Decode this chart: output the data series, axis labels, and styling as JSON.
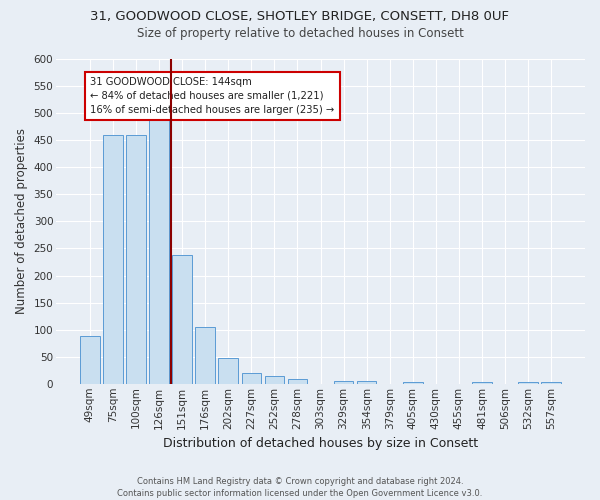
{
  "title_line1": "31, GOODWOOD CLOSE, SHOTLEY BRIDGE, CONSETT, DH8 0UF",
  "title_line2": "Size of property relative to detached houses in Consett",
  "xlabel": "Distribution of detached houses by size in Consett",
  "ylabel": "Number of detached properties",
  "bar_labels": [
    "49sqm",
    "75sqm",
    "100sqm",
    "126sqm",
    "151sqm",
    "176sqm",
    "202sqm",
    "227sqm",
    "252sqm",
    "278sqm",
    "303sqm",
    "329sqm",
    "354sqm",
    "379sqm",
    "405sqm",
    "430sqm",
    "455sqm",
    "481sqm",
    "506sqm",
    "532sqm",
    "557sqm"
  ],
  "bar_values": [
    88,
    460,
    460,
    500,
    238,
    105,
    47,
    20,
    14,
    8,
    0,
    5,
    5,
    0,
    4,
    0,
    0,
    4,
    0,
    4,
    4
  ],
  "bar_color": "#c9dff0",
  "bar_edge_color": "#5b9bd5",
  "vline_color": "#8B0000",
  "annotation_text": "31 GOODWOOD CLOSE: 144sqm\n← 84% of detached houses are smaller (1,221)\n16% of semi-detached houses are larger (235) →",
  "annotation_box_color": "white",
  "annotation_box_edge": "#cc0000",
  "ylim": [
    0,
    600
  ],
  "yticks": [
    0,
    50,
    100,
    150,
    200,
    250,
    300,
    350,
    400,
    450,
    500,
    550,
    600
  ],
  "footer_line1": "Contains HM Land Registry data © Crown copyright and database right 2024.",
  "footer_line2": "Contains public sector information licensed under the Open Government Licence v3.0.",
  "background_color": "#e8eef5",
  "plot_background": "#e8eef5",
  "title_fontsize": 9.5,
  "subtitle_fontsize": 8.5,
  "axis_label_fontsize": 8.5,
  "tick_fontsize": 7.5,
  "footer_fontsize": 6.0
}
